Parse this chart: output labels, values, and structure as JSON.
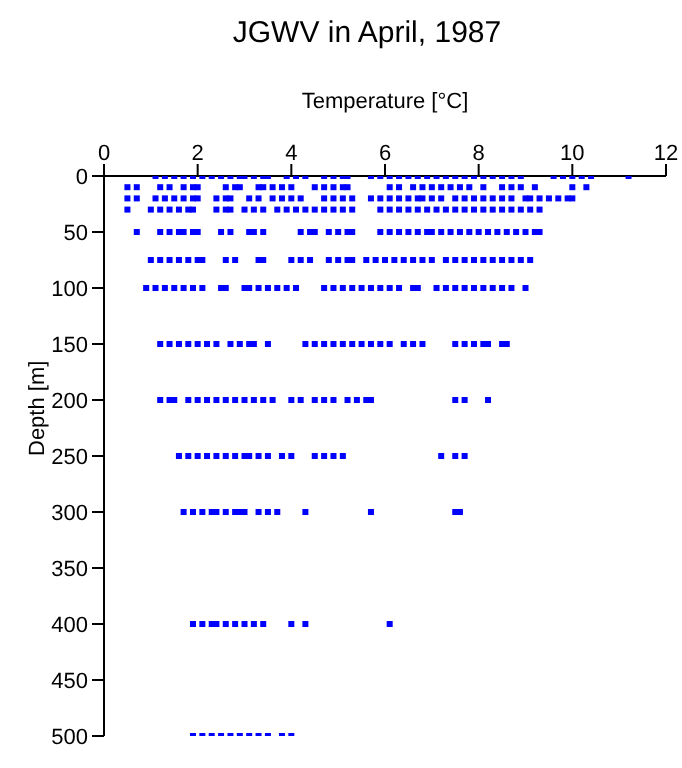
{
  "chart_data": {
    "type": "scatter",
    "title": "JGWV in April, 1987",
    "xlabel": "Temperature [°C]",
    "ylabel": "Depth [m]",
    "xlim": [
      0,
      12
    ],
    "xticks": [
      0,
      2,
      4,
      6,
      8,
      10,
      12
    ],
    "ylim": [
      500,
      0
    ],
    "yticks": [
      0,
      50,
      100,
      150,
      200,
      250,
      300,
      350,
      400,
      450,
      500
    ],
    "grid": false,
    "legend": false,
    "marker": "square",
    "series": [
      {
        "color": "#0000ff",
        "x": [
          1.1,
          1.3,
          1.5,
          1.7,
          1.9,
          2.1,
          2.3,
          2.5,
          2.7,
          2.9,
          3.0,
          3.2,
          3.4,
          3.5,
          3.9,
          4.1,
          4.3,
          4.7,
          4.9,
          5.1,
          5.2,
          5.7,
          5.9,
          6.1,
          6.3,
          6.5,
          6.7,
          6.9,
          7.1,
          7.3,
          7.5,
          7.7,
          7.9,
          8.1,
          8.3,
          8.5,
          8.7,
          8.9,
          9.6,
          9.8,
          10.0,
          10.2,
          10.4,
          11.2,
          0.5,
          0.7,
          1.2,
          1.4,
          1.7,
          1.9,
          2.0,
          2.6,
          2.8,
          2.9,
          3.3,
          3.4,
          3.6,
          3.8,
          4.0,
          4.5,
          4.7,
          4.9,
          5.1,
          5.2,
          6.1,
          6.3,
          6.6,
          6.8,
          7.0,
          7.2,
          7.4,
          7.6,
          7.8,
          8.1,
          8.5,
          8.7,
          8.9,
          9.2,
          10.0,
          10.3,
          0.5,
          0.7,
          1.1,
          1.3,
          1.5,
          1.7,
          1.9,
          2.0,
          2.4,
          2.6,
          2.7,
          3.1,
          3.3,
          3.6,
          3.8,
          4.0,
          4.2,
          4.7,
          4.9,
          5.1,
          5.3,
          5.7,
          5.9,
          6.1,
          6.3,
          6.5,
          6.7,
          6.8,
          7.0,
          7.2,
          7.5,
          7.7,
          7.9,
          8.1,
          8.3,
          8.5,
          8.7,
          9.0,
          9.1,
          9.3,
          9.5,
          9.7,
          9.9,
          10.0,
          0.5,
          1.0,
          1.2,
          1.4,
          1.6,
          1.8,
          1.9,
          2.4,
          2.6,
          2.7,
          3.0,
          3.2,
          3.4,
          3.7,
          3.9,
          4.1,
          4.3,
          4.5,
          4.7,
          4.9,
          5.1,
          5.3,
          5.9,
          6.1,
          6.3,
          6.5,
          6.7,
          6.9,
          7.1,
          7.3,
          7.5,
          7.7,
          7.9,
          8.1,
          8.3,
          8.5,
          8.7,
          8.9,
          9.1,
          9.3,
          0.7,
          1.2,
          1.4,
          1.6,
          1.7,
          1.9,
          2.0,
          2.5,
          2.7,
          3.1,
          3.2,
          3.4,
          4.2,
          4.4,
          4.5,
          4.8,
          5.0,
          5.2,
          5.3,
          5.9,
          6.1,
          6.3,
          6.5,
          6.7,
          6.9,
          7.0,
          7.2,
          7.4,
          7.6,
          7.8,
          8.0,
          8.2,
          8.4,
          8.6,
          8.8,
          9.0,
          9.2,
          9.3,
          1.0,
          1.2,
          1.4,
          1.6,
          1.8,
          2.0,
          2.1,
          2.6,
          2.8,
          3.3,
          3.4,
          4.0,
          4.2,
          4.4,
          4.8,
          5.0,
          5.2,
          5.3,
          5.6,
          5.8,
          6.0,
          6.2,
          6.4,
          6.6,
          6.8,
          7.0,
          7.3,
          7.5,
          7.7,
          7.9,
          8.1,
          8.3,
          8.5,
          8.7,
          8.9,
          9.1,
          0.9,
          1.1,
          1.3,
          1.5,
          1.7,
          1.9,
          2.1,
          2.5,
          2.6,
          3.0,
          3.1,
          3.3,
          3.5,
          3.7,
          3.9,
          4.1,
          4.7,
          4.9,
          5.1,
          5.3,
          5.5,
          5.7,
          5.9,
          6.1,
          6.3,
          6.6,
          6.7,
          7.1,
          7.3,
          7.5,
          7.7,
          7.9,
          8.1,
          8.3,
          8.5,
          8.7,
          9.0,
          1.2,
          1.4,
          1.6,
          1.8,
          2.0,
          2.2,
          2.4,
          2.7,
          2.9,
          3.1,
          3.2,
          3.5,
          4.3,
          4.5,
          4.7,
          4.9,
          5.1,
          5.3,
          5.5,
          5.7,
          5.9,
          6.1,
          6.4,
          6.6,
          6.8,
          7.5,
          7.7,
          7.9,
          8.1,
          8.2,
          8.5,
          8.6,
          1.2,
          1.4,
          1.5,
          1.8,
          2.0,
          2.2,
          2.4,
          2.6,
          2.8,
          3.0,
          3.2,
          3.4,
          3.6,
          4.0,
          4.2,
          4.5,
          4.7,
          4.9,
          5.2,
          5.4,
          5.6,
          5.7,
          7.5,
          7.7,
          8.2,
          1.6,
          1.8,
          2.0,
          2.2,
          2.4,
          2.6,
          2.8,
          3.0,
          3.1,
          3.3,
          3.5,
          3.8,
          4.0,
          4.5,
          4.7,
          4.9,
          5.1,
          7.2,
          7.5,
          7.7,
          1.7,
          1.9,
          2.1,
          2.3,
          2.4,
          2.6,
          2.8,
          2.9,
          3.0,
          3.3,
          3.5,
          3.7,
          4.3,
          5.7,
          7.5,
          7.6,
          1.9,
          2.1,
          2.3,
          2.4,
          2.6,
          2.8,
          3.0,
          3.2,
          3.4,
          4.0,
          4.3,
          6.1,
          1.9,
          2.1,
          2.3,
          2.5,
          2.7,
          2.9,
          3.1,
          3.3,
          3.5,
          3.8,
          4.0
        ],
        "values": [
          0,
          0,
          0,
          0,
          0,
          0,
          0,
          0,
          0,
          0,
          0,
          0,
          0,
          0,
          0,
          0,
          0,
          0,
          0,
          0,
          0,
          0,
          0,
          0,
          0,
          0,
          0,
          0,
          0,
          0,
          0,
          0,
          0,
          0,
          0,
          0,
          0,
          0,
          0,
          0,
          0,
          0,
          0,
          0,
          10,
          10,
          10,
          10,
          10,
          10,
          10,
          10,
          10,
          10,
          10,
          10,
          10,
          10,
          10,
          10,
          10,
          10,
          10,
          10,
          10,
          10,
          10,
          10,
          10,
          10,
          10,
          10,
          10,
          10,
          10,
          10,
          10,
          10,
          10,
          10,
          20,
          20,
          20,
          20,
          20,
          20,
          20,
          20,
          20,
          20,
          20,
          20,
          20,
          20,
          20,
          20,
          20,
          20,
          20,
          20,
          20,
          20,
          20,
          20,
          20,
          20,
          20,
          20,
          20,
          20,
          20,
          20,
          20,
          20,
          20,
          20,
          20,
          20,
          20,
          20,
          20,
          20,
          20,
          20,
          30,
          30,
          30,
          30,
          30,
          30,
          30,
          30,
          30,
          30,
          30,
          30,
          30,
          30,
          30,
          30,
          30,
          30,
          30,
          30,
          30,
          30,
          30,
          30,
          30,
          30,
          30,
          30,
          30,
          30,
          30,
          30,
          30,
          30,
          30,
          30,
          30,
          30,
          30,
          30,
          50,
          50,
          50,
          50,
          50,
          50,
          50,
          50,
          50,
          50,
          50,
          50,
          50,
          50,
          50,
          50,
          50,
          50,
          50,
          50,
          50,
          50,
          50,
          50,
          50,
          50,
          50,
          50,
          50,
          50,
          50,
          50,
          50,
          50,
          50,
          50,
          50,
          50,
          75,
          75,
          75,
          75,
          75,
          75,
          75,
          75,
          75,
          75,
          75,
          75,
          75,
          75,
          75,
          75,
          75,
          75,
          75,
          75,
          75,
          75,
          75,
          75,
          75,
          75,
          75,
          75,
          75,
          75,
          75,
          75,
          75,
          75,
          75,
          75,
          100,
          100,
          100,
          100,
          100,
          100,
          100,
          100,
          100,
          100,
          100,
          100,
          100,
          100,
          100,
          100,
          100,
          100,
          100,
          100,
          100,
          100,
          100,
          100,
          100,
          100,
          100,
          100,
          100,
          100,
          100,
          100,
          100,
          100,
          100,
          100,
          100,
          150,
          150,
          150,
          150,
          150,
          150,
          150,
          150,
          150,
          150,
          150,
          150,
          150,
          150,
          150,
          150,
          150,
          150,
          150,
          150,
          150,
          150,
          150,
          150,
          150,
          150,
          150,
          150,
          150,
          150,
          150,
          150,
          200,
          200,
          200,
          200,
          200,
          200,
          200,
          200,
          200,
          200,
          200,
          200,
          200,
          200,
          200,
          200,
          200,
          200,
          200,
          200,
          200,
          200,
          200,
          200,
          200,
          250,
          250,
          250,
          250,
          250,
          250,
          250,
          250,
          250,
          250,
          250,
          250,
          250,
          250,
          250,
          250,
          250,
          250,
          250,
          250,
          300,
          300,
          300,
          300,
          300,
          300,
          300,
          300,
          300,
          300,
          300,
          300,
          300,
          300,
          300,
          300,
          400,
          400,
          400,
          400,
          400,
          400,
          400,
          400,
          400,
          400,
          400,
          400,
          500,
          500,
          500,
          500,
          500,
          500,
          500,
          500,
          500,
          500,
          500
        ]
      }
    ]
  }
}
